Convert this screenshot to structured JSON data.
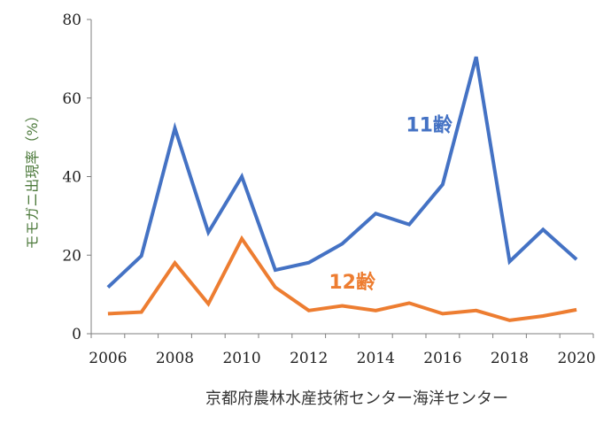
{
  "chart_data": {
    "type": "line",
    "title": "",
    "xlabel": "",
    "ylabel": "モモガニ出現率（%）",
    "x": [
      2006,
      2007,
      2008,
      2009,
      2010,
      2011,
      2012,
      2013,
      2014,
      2015,
      2016,
      2017,
      2018,
      2019,
      2020
    ],
    "xticks": [
      "2006",
      "2008",
      "2010",
      "2012",
      "2014",
      "2016",
      "2018",
      "2020"
    ],
    "yticks": [
      "0",
      "20",
      "40",
      "60",
      "80"
    ],
    "ylim": [
      0,
      80
    ],
    "grid": false,
    "series": [
      {
        "name": "11齢",
        "color": "#4472c4",
        "values": [
          11.8,
          19.8,
          52.3,
          25.8,
          40.0,
          16.2,
          18.1,
          22.9,
          30.6,
          27.8,
          38.0,
          70.5,
          18.4,
          26.5,
          18.9
        ]
      },
      {
        "name": "12齢",
        "color": "#ed7d31",
        "values": [
          5.1,
          5.5,
          18.0,
          7.6,
          24.2,
          11.8,
          5.9,
          7.1,
          5.9,
          7.8,
          5.1,
          5.9,
          3.4,
          4.5,
          6.1
        ]
      }
    ]
  },
  "source_label": "京都府農林水産技術センター海洋センター"
}
